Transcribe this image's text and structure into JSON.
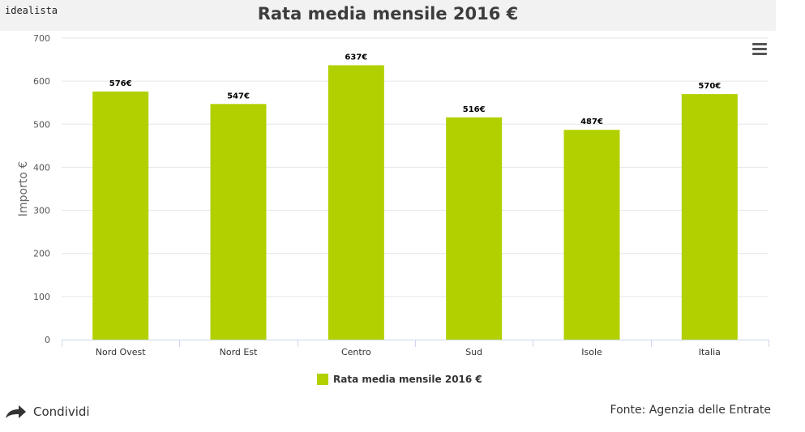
{
  "header": {
    "logo_text": "idealista",
    "title": "Rata media mensile 2016 €"
  },
  "chart_data": {
    "type": "bar",
    "categories": [
      "Nord Ovest",
      "Nord Est",
      "Centro",
      "Sud",
      "Isole",
      "Italia"
    ],
    "series": [
      {
        "name": "Rata media mensile 2016 €",
        "values": [
          576,
          547,
          637,
          516,
          487,
          570
        ]
      }
    ],
    "data_labels": [
      "576€",
      "547€",
      "637€",
      "516€",
      "487€",
      "570€"
    ],
    "ylabel": "Importo €",
    "xlabel": "",
    "ylim": [
      0,
      700
    ],
    "yticks": [
      0,
      100,
      200,
      300,
      400,
      500,
      600,
      700
    ],
    "grid": true,
    "legend_position": "bottom",
    "bar_color": "#b2d000"
  },
  "legend": {
    "label": "Rata media mensile 2016 €",
    "color": "#b2d000"
  },
  "footer": {
    "share_label": "Condividi",
    "share_icon": "share-arrow-icon",
    "source": "Fonte: Agenzia delle Entrate"
  },
  "toolbar": {
    "menu_icon": "hamburger-menu-icon"
  }
}
